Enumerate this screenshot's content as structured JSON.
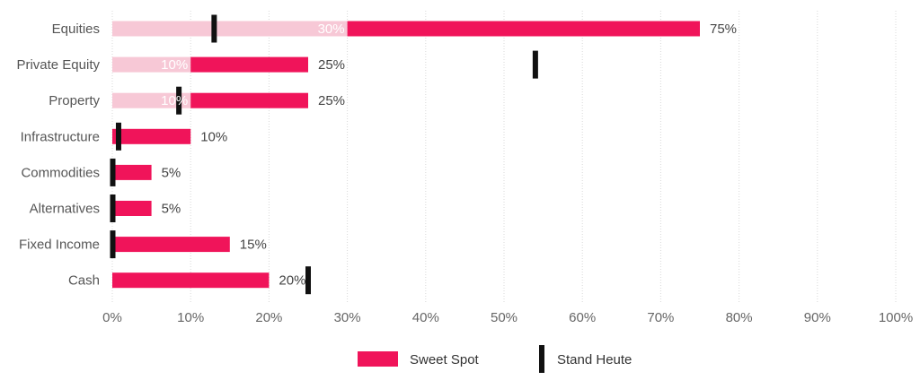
{
  "chart_data": {
    "type": "bar",
    "orientation": "horizontal",
    "categories": [
      "Equities",
      "Private Equity",
      "Property",
      "Infrastructure",
      "Commodities",
      "Alternatives",
      "Fixed Income",
      "Cash"
    ],
    "series": [
      {
        "name": "Sweet Spot",
        "ranges": [
          [
            30,
            75
          ],
          [
            10,
            25
          ],
          [
            10,
            25
          ],
          [
            0,
            10
          ],
          [
            0,
            5
          ],
          [
            0,
            5
          ],
          [
            0,
            15
          ],
          [
            0,
            20
          ]
        ],
        "min_labels": [
          "30%",
          "10%",
          "10%",
          "",
          "",
          "",
          "",
          ""
        ],
        "max_labels": [
          "75%",
          "25%",
          "25%",
          "10%",
          "5%",
          "5%",
          "15%",
          "20%"
        ]
      },
      {
        "name": "Stand Heute",
        "values": [
          13,
          54,
          8.5,
          0.8,
          0,
          0,
          0,
          25
        ]
      }
    ],
    "x_ticks": [
      0,
      10,
      20,
      30,
      40,
      50,
      60,
      70,
      80,
      90,
      100
    ],
    "x_tick_labels": [
      "0%",
      "10%",
      "20%",
      "30%",
      "40%",
      "50%",
      "60%",
      "70%",
      "80%",
      "90%",
      "100%"
    ],
    "xlim": [
      0,
      100
    ],
    "grid": true,
    "legend_position": "bottom-center",
    "colors": {
      "sweet_spot": "#f0145a",
      "sweet_spot_light": "#f7c8d6",
      "stand_heute": "#111111",
      "grid": "#d8d8d8"
    }
  },
  "legend": {
    "items": [
      {
        "label": "Sweet Spot",
        "swatch": "bar"
      },
      {
        "label": "Stand Heute",
        "swatch": "marker"
      }
    ]
  }
}
